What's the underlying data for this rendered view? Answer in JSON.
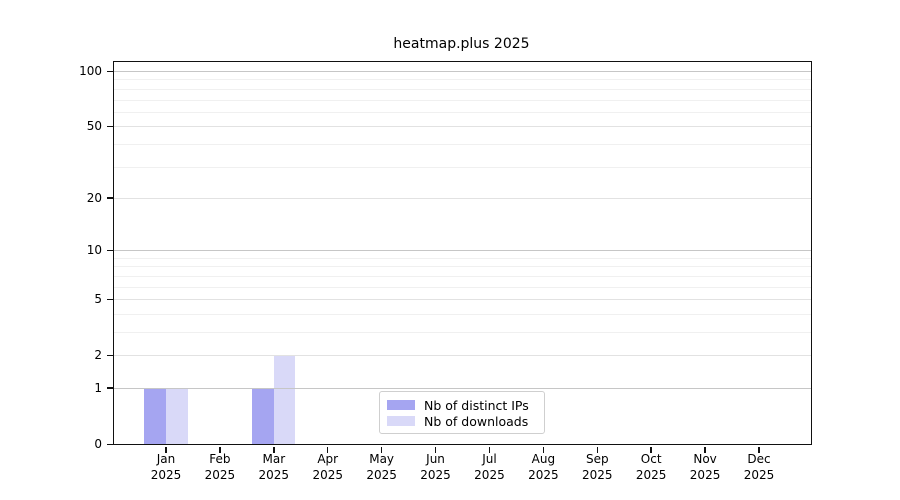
{
  "title": "heatmap.plus 2025",
  "chart_data": {
    "type": "bar",
    "title": "heatmap.plus 2025",
    "categories": [
      "Jan",
      "Feb",
      "Mar",
      "Apr",
      "May",
      "Jun",
      "Jul",
      "Aug",
      "Sep",
      "Oct",
      "Nov",
      "Dec"
    ],
    "x_year": "2025",
    "series": [
      {
        "name": "Nb of distinct IPs",
        "color": "#a5a5f1",
        "values": [
          1,
          0,
          1,
          0,
          0,
          0,
          0,
          0,
          0,
          0,
          0,
          0
        ]
      },
      {
        "name": "Nb of downloads",
        "color": "#d9d9f8",
        "values": [
          1,
          0,
          2,
          0,
          0,
          0,
          0,
          0,
          0,
          0,
          0,
          0
        ]
      }
    ],
    "yscale": "log1p",
    "yticks": [
      0,
      1,
      2,
      5,
      10,
      20,
      50,
      100
    ],
    "decade_yticks": [
      1,
      10,
      100
    ],
    "minor_yticks": [
      3,
      4,
      6,
      7,
      8,
      9,
      30,
      40,
      60,
      70,
      80,
      90
    ],
    "ylim": [
      0,
      112
    ],
    "xlabel": "",
    "ylabel": "",
    "grid": "horizontal",
    "legend_position": "lower center inside"
  },
  "colors": {
    "spine": "#111111",
    "grid_major": "#e2e2e2",
    "grid_decade": "#c6c6c6",
    "grid_minor": "#f0f0f0",
    "background": "#ffffff"
  }
}
